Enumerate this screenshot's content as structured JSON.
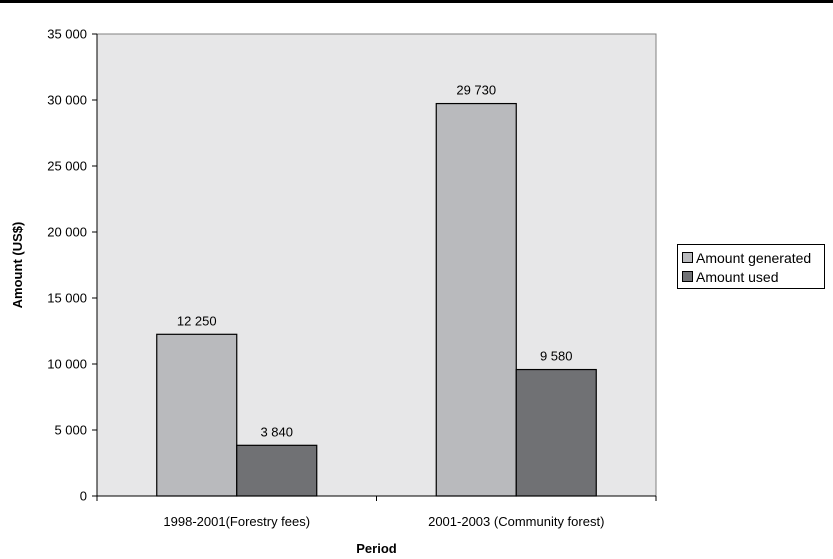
{
  "chart_data": {
    "type": "bar",
    "categories": [
      "1998-2001(Forestry fees)",
      "2001-2003 (Community forest)"
    ],
    "series": [
      {
        "name": "Amount generated",
        "values": [
          12250,
          29730
        ],
        "labels": [
          "12 250",
          "29 730"
        ],
        "color": "#b9babd"
      },
      {
        "name": "Amount used",
        "values": [
          3840,
          9580
        ],
        "labels": [
          "3 840",
          "9 580"
        ],
        "color": "#707174"
      }
    ],
    "title": "",
    "xlabel": "Period",
    "ylabel": "Amount (US$)",
    "ylim": [
      0,
      35000
    ],
    "yticks": [
      0,
      5000,
      10000,
      15000,
      20000,
      25000,
      30000,
      35000
    ],
    "ytick_labels": [
      "0",
      "5 000",
      "10 000",
      "15 000",
      "20 000",
      "25 000",
      "30 000",
      "35 000"
    ],
    "grid": false,
    "plot_background": "#e7e7e8",
    "legend_position": "right"
  }
}
